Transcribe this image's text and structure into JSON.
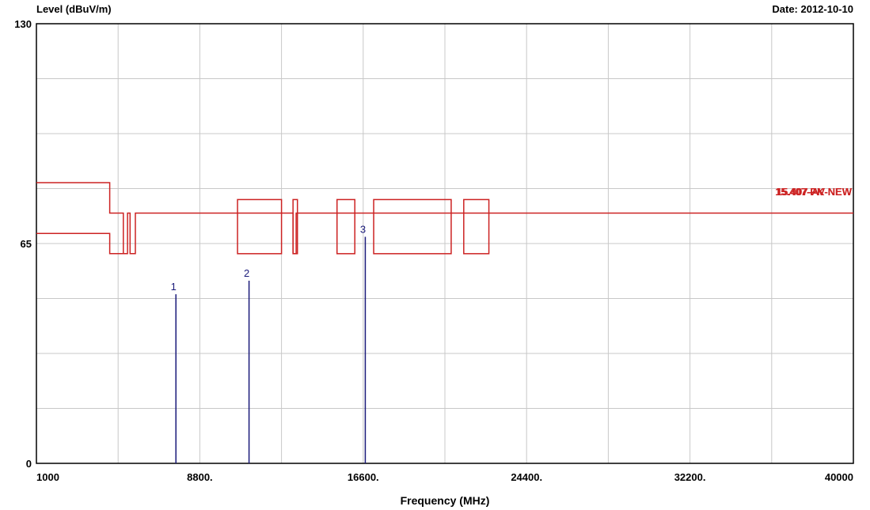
{
  "chart_data": {
    "type": "line",
    "ylabel": "Level (dBuV/m)",
    "xlabel": "Frequency (MHz)",
    "date": "Date: 2012-10-10",
    "xlim": [
      1000,
      40000
    ],
    "ylim": [
      0,
      130
    ],
    "x_ticks": [
      {
        "value": 1000,
        "label": "1000"
      },
      {
        "value": 8800,
        "label": "8800."
      },
      {
        "value": 16600,
        "label": "16600."
      },
      {
        "value": 24400,
        "label": "24400."
      },
      {
        "value": 32200,
        "label": "32200."
      },
      {
        "value": 40000,
        "label": "40000"
      }
    ],
    "y_ticks": [
      {
        "value": 0,
        "label": "0"
      },
      {
        "value": 65,
        "label": "65"
      },
      {
        "value": 130,
        "label": "130"
      }
    ],
    "grid": true,
    "limit_label": "15.407-AV-NEW",
    "limit_label_overlap": "15.407-PK-NEW",
    "colors": {
      "limit": "#cc2222",
      "marker": "#1a1a7a",
      "grid": "#c8c8c8"
    },
    "limit_upper": [
      [
        1000,
        83
      ],
      [
        4500,
        83
      ],
      [
        4500,
        74
      ],
      [
        5150,
        74
      ],
      [
        5150,
        62
      ],
      [
        5350,
        62
      ],
      [
        5350,
        74
      ],
      [
        5470,
        74
      ],
      [
        5470,
        62
      ],
      [
        5725,
        62
      ],
      [
        5725,
        74
      ],
      [
        10000,
        74
      ],
      [
        10000,
        74
      ],
      [
        12000,
        74
      ],
      [
        12000,
        74
      ],
      [
        13250,
        74
      ],
      [
        13250,
        62
      ],
      [
        13400,
        62
      ],
      [
        13400,
        74
      ],
      [
        15000,
        74
      ],
      [
        15000,
        74
      ],
      [
        15800,
        74
      ],
      [
        15800,
        74
      ],
      [
        17700,
        74
      ],
      [
        17700,
        74
      ],
      [
        21400,
        74
      ],
      [
        21400,
        74
      ],
      [
        22010,
        74
      ],
      [
        22010,
        74
      ],
      [
        23120,
        74
      ],
      [
        23120,
        74
      ],
      [
        40000,
        74
      ]
    ],
    "limit_lower": [
      [
        1000,
        68
      ],
      [
        4500,
        68
      ],
      [
        4500,
        62
      ],
      [
        5150,
        62
      ]
    ],
    "limit_boxes": [
      [
        10600,
        12700,
        62,
        78
      ],
      [
        13250,
        13460,
        62,
        78
      ],
      [
        15350,
        16200,
        62,
        78
      ],
      [
        17100,
        20800,
        62,
        78
      ],
      [
        21400,
        22600,
        62,
        78
      ]
    ],
    "markers": [
      {
        "label": "1",
        "freq": 7660,
        "level": 50
      },
      {
        "label": "2",
        "freq": 11150,
        "level": 54
      },
      {
        "label": "3",
        "freq": 16700,
        "level": 67
      }
    ]
  }
}
